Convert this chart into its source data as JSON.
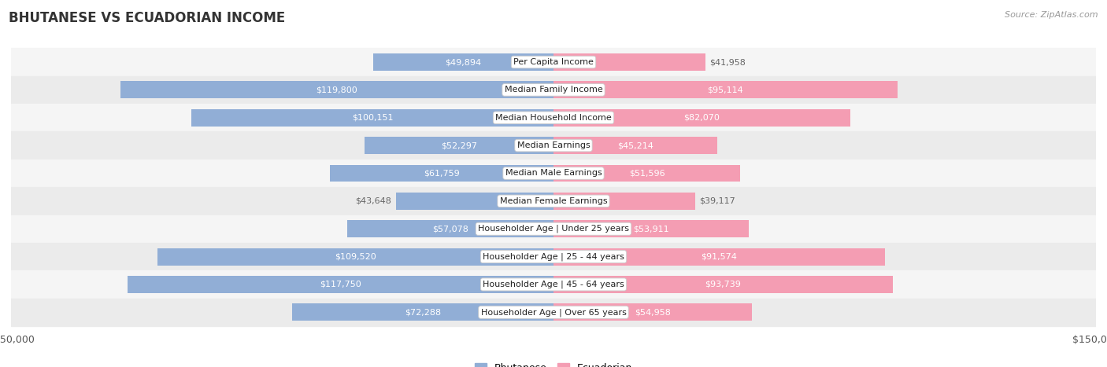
{
  "title": "BHUTANESE VS ECUADORIAN INCOME",
  "source": "Source: ZipAtlas.com",
  "categories": [
    "Per Capita Income",
    "Median Family Income",
    "Median Household Income",
    "Median Earnings",
    "Median Male Earnings",
    "Median Female Earnings",
    "Householder Age | Under 25 years",
    "Householder Age | 25 - 44 years",
    "Householder Age | 45 - 64 years",
    "Householder Age | Over 65 years"
  ],
  "bhutanese_values": [
    49894,
    119800,
    100151,
    52297,
    61759,
    43648,
    57078,
    109520,
    117750,
    72288
  ],
  "ecuadorian_values": [
    41958,
    95114,
    82070,
    45214,
    51596,
    39117,
    53911,
    91574,
    93739,
    54958
  ],
  "max_value": 150000,
  "blue_color": "#91aed6",
  "pink_color": "#f49db3",
  "bar_height": 0.62,
  "label_fontsize": 8.0,
  "category_fontsize": 8.0,
  "title_fontsize": 12,
  "source_fontsize": 8,
  "row_colors": [
    "#f5f5f5",
    "#ebebeb"
  ],
  "inside_threshold": 0.3
}
